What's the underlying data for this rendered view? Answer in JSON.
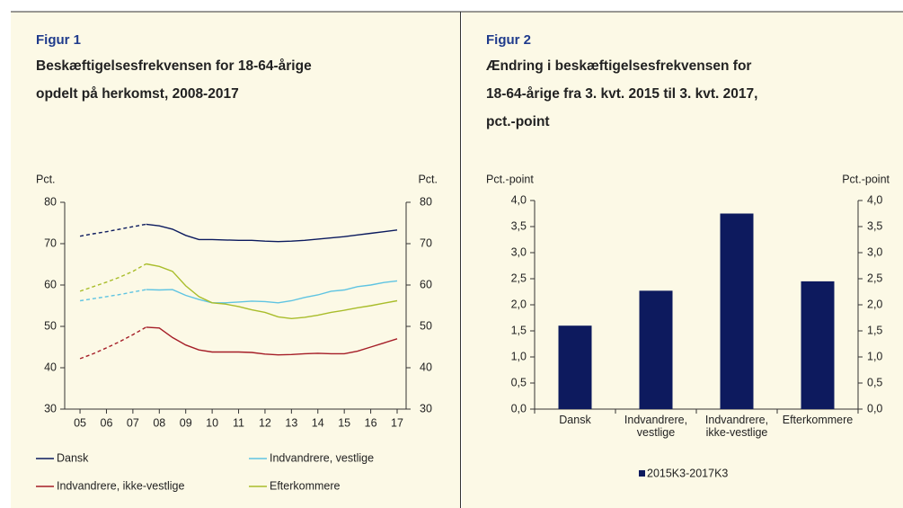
{
  "chart_data": [
    {
      "type": "line",
      "figure_label": "Figur 1",
      "title": "Beskæftigelsesfrekvensen for 18-64-årige\nopdelt på herkomst, 2008-2017",
      "ylabel": "Pct.",
      "y2label": "Pct.",
      "x": [
        2005,
        2005.5,
        2006,
        2006.5,
        2007,
        2007.5,
        2008,
        2008.5,
        2009,
        2009.5,
        2010,
        2010.5,
        2011,
        2011.5,
        2012,
        2012.5,
        2013,
        2013.5,
        2014,
        2014.5,
        2015,
        2015.5,
        2016,
        2016.5,
        2017
      ],
      "dashed_until": 2007.5,
      "xlim": [
        2004.42,
        2017.34
      ],
      "xticks": [
        {
          "value": 2005,
          "label": "05"
        },
        {
          "value": 2006,
          "label": "06"
        },
        {
          "value": 2007,
          "label": "07"
        },
        {
          "value": 2008,
          "label": "08"
        },
        {
          "value": 2009,
          "label": "09"
        },
        {
          "value": 2010,
          "label": "10"
        },
        {
          "value": 2011,
          "label": "11"
        },
        {
          "value": 2012,
          "label": "12"
        },
        {
          "value": 2013,
          "label": "13"
        },
        {
          "value": 2014,
          "label": "14"
        },
        {
          "value": 2015,
          "label": "15"
        },
        {
          "value": 2016,
          "label": "16"
        },
        {
          "value": 2017,
          "label": "17"
        }
      ],
      "ylim": [
        30,
        80
      ],
      "yticks": [
        30,
        40,
        50,
        60,
        70,
        80
      ],
      "y2lim": [
        30,
        80
      ],
      "y2ticks": [
        30,
        40,
        50,
        60,
        70,
        80
      ],
      "series": [
        {
          "name": "Dansk",
          "color": "#0b1a5e",
          "values": [
            71.8,
            72.4,
            72.9,
            73.5,
            74.1,
            74.7,
            74.3,
            73.5,
            72,
            71,
            71,
            70.9,
            70.8,
            70.8,
            70.6,
            70.5,
            70.6,
            70.8,
            71.1,
            71.4,
            71.7,
            72.1,
            72.5,
            72.9,
            73.3
          ]
        },
        {
          "name": "Indvandrere, vestlige",
          "color": "#5fc4e2",
          "values": [
            56.2,
            56.7,
            57.2,
            57.7,
            58.3,
            58.9,
            58.8,
            58.9,
            57.5,
            56.5,
            55.7,
            55.7,
            55.9,
            56.1,
            56,
            55.7,
            56.2,
            57,
            57.6,
            58.5,
            58.8,
            59.6,
            60,
            60.6,
            61
          ]
        },
        {
          "name": "Indvandrere, ikke-vestlige",
          "color": "#a51d27",
          "values": [
            42.2,
            43.4,
            44.8,
            46.3,
            48,
            49.8,
            49.6,
            47.3,
            45.5,
            44.3,
            43.8,
            43.8,
            43.8,
            43.7,
            43.3,
            43.1,
            43.2,
            43.4,
            43.5,
            43.4,
            43.4,
            44,
            45,
            46,
            47
          ]
        },
        {
          "name": "Efterkommere",
          "color": "#a9bd2b",
          "values": [
            58.5,
            59.6,
            60.7,
            61.9,
            63.3,
            65.1,
            64.5,
            63.3,
            59.8,
            57.2,
            55.7,
            55.4,
            54.8,
            54,
            53.4,
            52.3,
            51.9,
            52.2,
            52.7,
            53.4,
            53.9,
            54.5,
            55,
            55.6,
            56.2
          ]
        }
      ]
    },
    {
      "type": "bar",
      "figure_label": "Figur 2",
      "title": "Ændring i beskæftigelsesfrekvensen for\n18-64-årige fra 3. kvt. 2015 til 3. kvt. 2017,\npct.-point",
      "ylabel": "Pct.-point",
      "y2label": "Pct.-point",
      "categories": [
        "Dansk",
        "Indvandrere,\nvestlige",
        "Indvandrere,\nikke-vestlige",
        "Efterkommere"
      ],
      "ylim": [
        0,
        4
      ],
      "yticks": [
        {
          "value": 0,
          "label": "0,0"
        },
        {
          "value": 0.5,
          "label": "0,5"
        },
        {
          "value": 1,
          "label": "1,0"
        },
        {
          "value": 1.5,
          "label": "1,5"
        },
        {
          "value": 2,
          "label": "2,0"
        },
        {
          "value": 2.5,
          "label": "2,5"
        },
        {
          "value": 3,
          "label": "3,0"
        },
        {
          "value": 3.5,
          "label": "3,5"
        },
        {
          "value": 4,
          "label": "4,0"
        }
      ],
      "y2lim": [
        0,
        4
      ],
      "y2ticks": [
        {
          "value": 0,
          "label": "0,0"
        },
        {
          "value": 0.5,
          "label": "0,5"
        },
        {
          "value": 1,
          "label": "1,0"
        },
        {
          "value": 1.5,
          "label": "1,5"
        },
        {
          "value": 2,
          "label": "2,0"
        },
        {
          "value": 2.5,
          "label": "2,5"
        },
        {
          "value": 3,
          "label": "3,0"
        },
        {
          "value": 3.5,
          "label": "3,5"
        },
        {
          "value": 4,
          "label": "4,0"
        }
      ],
      "series": [
        {
          "name": "2015K3-2017K3",
          "color": "#0d1a5e",
          "values": [
            1.6,
            2.27,
            3.75,
            2.45
          ]
        }
      ]
    }
  ]
}
